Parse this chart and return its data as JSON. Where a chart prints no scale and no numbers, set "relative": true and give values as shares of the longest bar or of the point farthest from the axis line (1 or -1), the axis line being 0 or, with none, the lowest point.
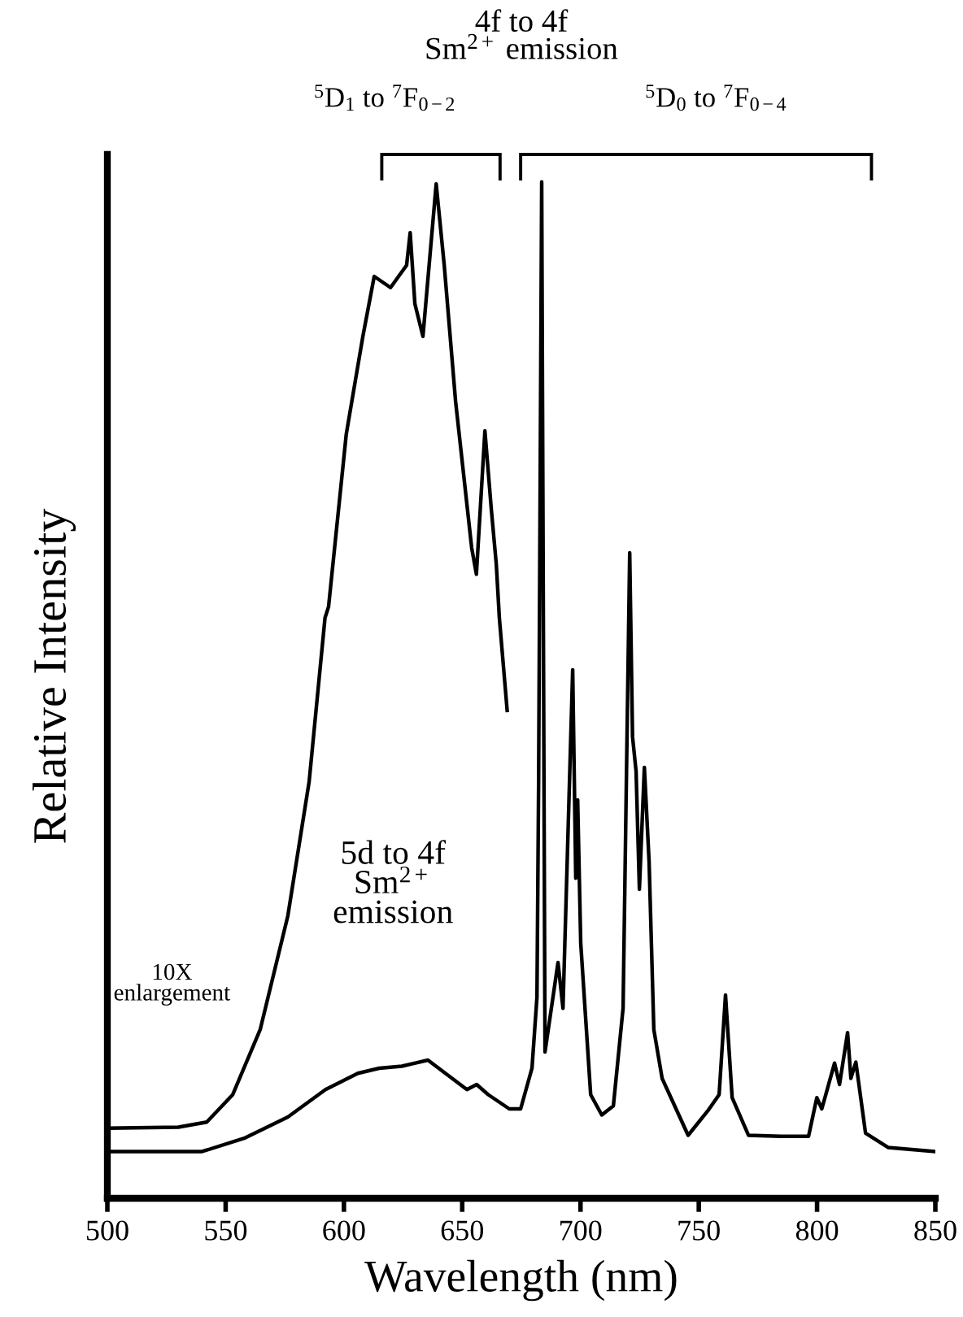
{
  "chart_data": {
    "type": "line",
    "relative": true,
    "xlabel": "Wavelength (nm)",
    "ylabel": "Relative Intensity",
    "xlim": [
      500,
      850
    ],
    "xticks": [
      500,
      550,
      600,
      650,
      700,
      750,
      800,
      850
    ],
    "grid": false,
    "marker": "none",
    "line_style": "solid",
    "annotations": [
      "4f to 4f\nSm$^{2+}$ emission",
      "$^{5}$D$_{1}$ to $^{7}$F$_{0−2}$",
      "$^{5}$D$_{0}$ to $^{7}$F$_{0−4}$",
      "5d to 4f\nSm$^{2+}$\nemission",
      "10X\nenlargement"
    ],
    "series": [
      {
        "color": "#000000",
        "x": [
          500,
          530,
          542,
          553,
          564.6,
          576.3,
          585.3,
          592,
          593.5,
          601,
          608,
          612.8,
          619.7,
          626.5,
          628,
          630,
          633.4,
          639,
          642.4,
          647.2,
          654,
          656,
          659.6,
          662.3,
          664.4,
          665.7,
          669
        ],
        "values": [
          0.069,
          0.07,
          0.075,
          0.102,
          0.166,
          0.278,
          0.41,
          0.571,
          0.582,
          0.752,
          0.848,
          0.907,
          0.896,
          0.918,
          0.95,
          0.88,
          0.848,
          0.998,
          0.918,
          0.784,
          0.64,
          0.614,
          0.755,
          0.678,
          0.624,
          0.571,
          0.48
        ]
      },
      {
        "color": "#000000",
        "x": [
          500,
          540,
          557.8,
          576.3,
          592.2,
          605.9,
          614.9,
          624.5,
          635.5,
          652,
          656.1,
          661,
          669.9,
          674.7,
          679.5,
          681.6,
          682.3,
          683.6,
          685,
          690.5,
          692.6,
          696.7,
          698,
          698.8,
          700.1,
          704.3,
          709,
          713.9,
          718,
          720.8,
          722,
          723.5,
          724.9,
          727,
          729,
          731,
          734.5,
          745.5,
          753.8,
          758.6,
          761.3,
          764.1,
          771,
          784.7,
          796.4,
          799.9,
          802,
          807.4,
          809.5,
          812.9,
          814.3,
          816.4,
          820.5,
          830,
          850
        ],
        "values": [
          0.046,
          0.046,
          0.059,
          0.08,
          0.107,
          0.123,
          0.128,
          0.13,
          0.136,
          0.107,
          0.112,
          0.102,
          0.088,
          0.088,
          0.128,
          0.198,
          0.41,
          1.0,
          0.144,
          0.232,
          0.187,
          0.52,
          0.315,
          0.392,
          0.251,
          0.102,
          0.082,
          0.091,
          0.187,
          0.635,
          0.454,
          0.42,
          0.304,
          0.424,
          0.331,
          0.166,
          0.118,
          0.062,
          0.086,
          0.102,
          0.2,
          0.099,
          0.062,
          0.061,
          0.061,
          0.099,
          0.088,
          0.133,
          0.112,
          0.163,
          0.118,
          0.134,
          0.064,
          0.05,
          0.046
        ]
      }
    ]
  }
}
